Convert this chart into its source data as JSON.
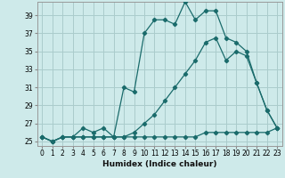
{
  "xlabel": "Humidex (Indice chaleur)",
  "bg_color": "#ceeaea",
  "grid_color": "#aacccc",
  "line_color": "#1a6b6b",
  "xlim": [
    -0.5,
    23.5
  ],
  "ylim": [
    24.5,
    40.5
  ],
  "xticks": [
    0,
    1,
    2,
    3,
    4,
    5,
    6,
    7,
    8,
    9,
    10,
    11,
    12,
    13,
    14,
    15,
    16,
    17,
    18,
    19,
    20,
    21,
    22,
    23
  ],
  "yticks": [
    25,
    27,
    29,
    31,
    33,
    35,
    37,
    39
  ],
  "series1_x": [
    0,
    1,
    2,
    3,
    4,
    5,
    6,
    7,
    8,
    9,
    10,
    11,
    12,
    13,
    14,
    15,
    16,
    17,
    18,
    19,
    20,
    21,
    22,
    23
  ],
  "series1_y": [
    25.5,
    25.0,
    25.5,
    25.5,
    26.5,
    26.0,
    26.5,
    25.5,
    31.0,
    30.5,
    37.0,
    38.5,
    38.5,
    38.0,
    40.5,
    38.5,
    39.5,
    39.5,
    36.5,
    36.0,
    35.0,
    31.5,
    28.5,
    26.5
  ],
  "series2_x": [
    0,
    1,
    2,
    3,
    4,
    5,
    6,
    7,
    8,
    9,
    10,
    11,
    12,
    13,
    14,
    15,
    16,
    17,
    18,
    19,
    20,
    21,
    22,
    23
  ],
  "series2_y": [
    25.5,
    25.0,
    25.5,
    25.5,
    25.5,
    25.5,
    25.5,
    25.5,
    25.5,
    26.0,
    27.0,
    28.0,
    29.5,
    31.0,
    32.5,
    34.0,
    36.0,
    36.5,
    34.0,
    35.0,
    34.5,
    31.5,
    28.5,
    26.5
  ],
  "series3_x": [
    0,
    1,
    2,
    3,
    4,
    5,
    6,
    7,
    8,
    9,
    10,
    11,
    12,
    13,
    14,
    15,
    16,
    17,
    18,
    19,
    20,
    21,
    22,
    23
  ],
  "series3_y": [
    25.5,
    25.0,
    25.5,
    25.5,
    25.5,
    25.5,
    25.5,
    25.5,
    25.5,
    25.5,
    25.5,
    25.5,
    25.5,
    25.5,
    25.5,
    25.5,
    26.0,
    26.0,
    26.0,
    26.0,
    26.0,
    26.0,
    26.0,
    26.5
  ]
}
